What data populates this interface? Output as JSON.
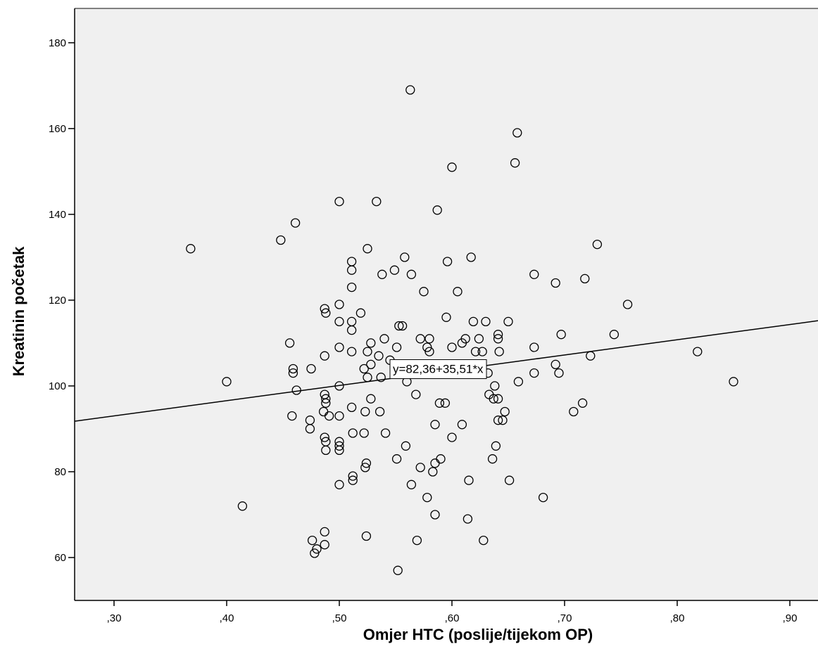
{
  "chart_data": {
    "type": "scatter",
    "xlabel": "Omjer HTC (poslije/tijekom OP)",
    "ylabel": "Kreatinin početak",
    "xlim": [
      0.265,
      0.925
    ],
    "ylim": [
      50,
      188
    ],
    "x_ticks": [
      0.3,
      0.4,
      0.5,
      0.6,
      0.7,
      0.8,
      0.9
    ],
    "x_tick_labels": [
      ",30",
      ",40",
      ",50",
      ",60",
      ",70",
      ",80",
      ",90"
    ],
    "y_ticks": [
      60,
      80,
      100,
      120,
      140,
      160,
      180
    ],
    "y_tick_labels": [
      "60",
      "80",
      "100",
      "120",
      "140",
      "160",
      "180"
    ],
    "fit_line": {
      "intercept": 82.36,
      "slope": 35.51,
      "label": "y=82,36+35,51*x",
      "label_x": 0.545,
      "label_y": 104
    },
    "background": "#f0f0f0",
    "marker_color": "#000000",
    "points": [
      [
        0.368,
        132
      ],
      [
        0.4,
        101
      ],
      [
        0.414,
        72
      ],
      [
        0.448,
        134
      ],
      [
        0.456,
        110
      ],
      [
        0.458,
        93
      ],
      [
        0.459,
        104
      ],
      [
        0.459,
        103
      ],
      [
        0.461,
        138
      ],
      [
        0.462,
        99
      ],
      [
        0.474,
        92
      ],
      [
        0.474,
        90
      ],
      [
        0.475,
        104
      ],
      [
        0.476,
        64
      ],
      [
        0.478,
        61
      ],
      [
        0.48,
        62
      ],
      [
        0.486,
        94
      ],
      [
        0.487,
        107
      ],
      [
        0.487,
        118
      ],
      [
        0.488,
        117
      ],
      [
        0.487,
        98
      ],
      [
        0.488,
        97
      ],
      [
        0.488,
        96
      ],
      [
        0.487,
        88
      ],
      [
        0.488,
        87
      ],
      [
        0.488,
        85
      ],
      [
        0.487,
        66
      ],
      [
        0.487,
        63
      ],
      [
        0.491,
        93
      ],
      [
        0.5,
        143
      ],
      [
        0.5,
        119
      ],
      [
        0.5,
        115
      ],
      [
        0.5,
        109
      ],
      [
        0.5,
        100
      ],
      [
        0.5,
        93
      ],
      [
        0.5,
        87
      ],
      [
        0.5,
        86
      ],
      [
        0.5,
        85
      ],
      [
        0.5,
        77
      ],
      [
        0.511,
        129
      ],
      [
        0.511,
        127
      ],
      [
        0.511,
        123
      ],
      [
        0.511,
        115
      ],
      [
        0.511,
        113
      ],
      [
        0.511,
        108
      ],
      [
        0.511,
        95
      ],
      [
        0.512,
        89
      ],
      [
        0.512,
        79
      ],
      [
        0.512,
        78
      ],
      [
        0.519,
        117
      ],
      [
        0.522,
        104
      ],
      [
        0.523,
        94
      ],
      [
        0.522,
        89
      ],
      [
        0.523,
        81
      ],
      [
        0.524,
        82
      ],
      [
        0.524,
        65
      ],
      [
        0.525,
        132
      ],
      [
        0.525,
        108
      ],
      [
        0.525,
        102
      ],
      [
        0.528,
        110
      ],
      [
        0.528,
        105
      ],
      [
        0.528,
        97
      ],
      [
        0.533,
        143
      ],
      [
        0.535,
        107
      ],
      [
        0.536,
        94
      ],
      [
        0.537,
        102
      ],
      [
        0.538,
        126
      ],
      [
        0.54,
        111
      ],
      [
        0.541,
        89
      ],
      [
        0.545,
        106
      ],
      [
        0.549,
        127
      ],
      [
        0.551,
        109
      ],
      [
        0.551,
        83
      ],
      [
        0.552,
        57
      ],
      [
        0.553,
        114
      ],
      [
        0.556,
        114
      ],
      [
        0.558,
        130
      ],
      [
        0.559,
        86
      ],
      [
        0.56,
        101
      ],
      [
        0.563,
        169
      ],
      [
        0.564,
        126
      ],
      [
        0.564,
        77
      ],
      [
        0.568,
        98
      ],
      [
        0.569,
        64
      ],
      [
        0.572,
        111
      ],
      [
        0.572,
        81
      ],
      [
        0.575,
        122
      ],
      [
        0.578,
        109
      ],
      [
        0.578,
        74
      ],
      [
        0.58,
        111
      ],
      [
        0.58,
        108
      ],
      [
        0.583,
        80
      ],
      [
        0.585,
        91
      ],
      [
        0.585,
        82
      ],
      [
        0.585,
        70
      ],
      [
        0.587,
        141
      ],
      [
        0.589,
        96
      ],
      [
        0.59,
        83
      ],
      [
        0.594,
        96
      ],
      [
        0.595,
        116
      ],
      [
        0.596,
        129
      ],
      [
        0.6,
        151
      ],
      [
        0.6,
        109
      ],
      [
        0.6,
        103
      ],
      [
        0.6,
        88
      ],
      [
        0.605,
        122
      ],
      [
        0.609,
        110
      ],
      [
        0.609,
        91
      ],
      [
        0.612,
        111
      ],
      [
        0.614,
        69
      ],
      [
        0.615,
        78
      ],
      [
        0.617,
        130
      ],
      [
        0.619,
        115
      ],
      [
        0.621,
        108
      ],
      [
        0.624,
        111
      ],
      [
        0.627,
        108
      ],
      [
        0.628,
        64
      ],
      [
        0.63,
        115
      ],
      [
        0.632,
        103
      ],
      [
        0.633,
        98
      ],
      [
        0.636,
        83
      ],
      [
        0.637,
        97
      ],
      [
        0.638,
        100
      ],
      [
        0.639,
        86
      ],
      [
        0.641,
        112
      ],
      [
        0.641,
        111
      ],
      [
        0.641,
        97
      ],
      [
        0.641,
        92
      ],
      [
        0.642,
        108
      ],
      [
        0.645,
        92
      ],
      [
        0.647,
        94
      ],
      [
        0.65,
        115
      ],
      [
        0.651,
        78
      ],
      [
        0.656,
        152
      ],
      [
        0.658,
        159
      ],
      [
        0.659,
        101
      ],
      [
        0.673,
        126
      ],
      [
        0.673,
        109
      ],
      [
        0.673,
        103
      ],
      [
        0.681,
        74
      ],
      [
        0.692,
        124
      ],
      [
        0.692,
        105
      ],
      [
        0.695,
        103
      ],
      [
        0.697,
        112
      ],
      [
        0.708,
        94
      ],
      [
        0.716,
        96
      ],
      [
        0.718,
        125
      ],
      [
        0.723,
        107
      ],
      [
        0.729,
        133
      ],
      [
        0.744,
        112
      ],
      [
        0.756,
        119
      ],
      [
        0.818,
        108
      ],
      [
        0.85,
        101
      ]
    ]
  }
}
